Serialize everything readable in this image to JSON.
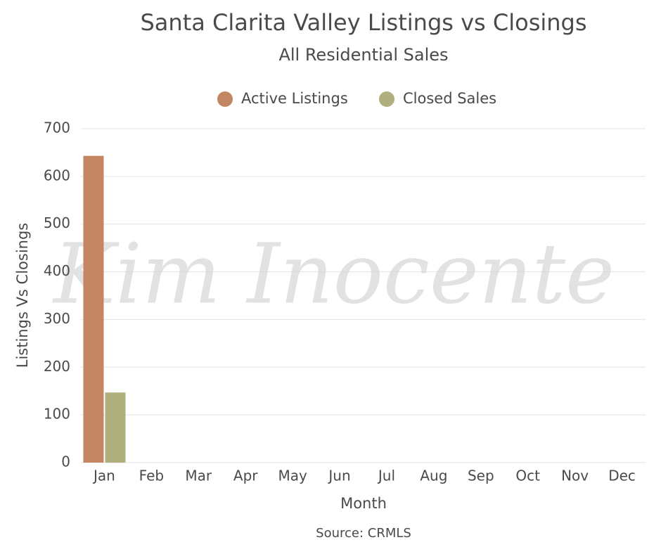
{
  "chart_data": {
    "type": "bar",
    "title": "Santa Clarita Valley Listings vs Closings",
    "subtitle": "All Residential Sales",
    "x_label": "Month",
    "y_label": "Listings Vs Closings",
    "source": "Source: CRMLS",
    "watermark": "Kim Inocente",
    "categories": [
      "Jan",
      "Feb",
      "Mar",
      "Apr",
      "May",
      "Jun",
      "Jul",
      "Aug",
      "Sep",
      "Oct",
      "Nov",
      "Dec"
    ],
    "series": [
      {
        "name": "Active Listings",
        "color": "#c48662",
        "values": [
          643,
          null,
          null,
          null,
          null,
          null,
          null,
          null,
          null,
          null,
          null,
          null
        ]
      },
      {
        "name": "Closed Sales",
        "color": "#b0b07e",
        "values": [
          147,
          null,
          null,
          null,
          null,
          null,
          null,
          null,
          null,
          null,
          null,
          null
        ]
      }
    ],
    "ylim": [
      0,
      700
    ],
    "yticks": [
      0,
      100,
      200,
      300,
      400,
      500,
      600,
      700
    ],
    "grid": true,
    "legend": "top"
  }
}
